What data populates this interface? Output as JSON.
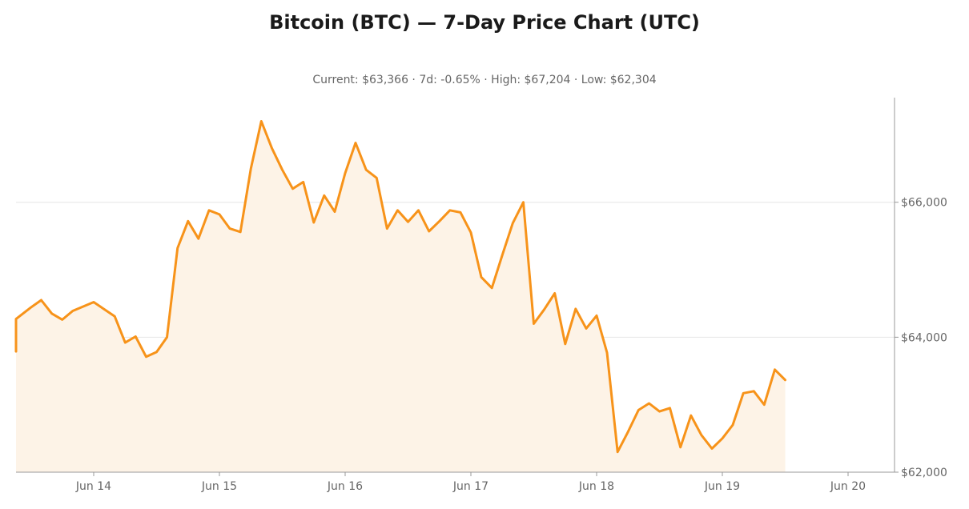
{
  "title": "Bitcoin (BTC) — 7-Day Price Chart (UTC)",
  "subtitle": "Current: $63,366  ·  7d: -0.65%  ·  High: $67,204  ·  Low: $62,304",
  "colors": {
    "line": "#f7931a",
    "fill": "#fdf3e7",
    "grid": "#e6e6e6",
    "axis": "#999999",
    "text": "#666666"
  },
  "chart_data": {
    "type": "area",
    "x_label": "",
    "y_label": "",
    "x_tick_labels": [
      "Jun 14",
      "Jun 15",
      "Jun 16",
      "Jun 17",
      "Jun 18",
      "Jun 19",
      "Jun 20"
    ],
    "y_tick_labels": [
      "$62,000",
      "$64,000",
      "$66,000"
    ],
    "y_ticks": [
      62000,
      64000,
      66000
    ],
    "ylim": [
      62000,
      67550
    ],
    "x_range_days": [
      0,
      7
    ],
    "y_axis_position": "right",
    "grid": "horizontal",
    "series": [
      {
        "x": [
          0.0,
          0.083,
          0.167,
          0.25,
          0.333,
          0.5,
          0.583,
          0.667,
          0.75,
          0.833,
          1.0,
          1.167,
          1.25,
          1.333,
          1.417,
          1.5,
          1.583,
          1.667,
          1.75,
          1.833,
          1.917,
          2.0,
          2.083,
          2.167,
          2.25,
          2.333,
          2.417,
          2.5,
          2.583,
          2.667,
          2.75,
          2.833,
          2.917,
          3.0,
          3.083,
          3.167,
          3.25,
          3.333,
          3.417,
          3.5,
          3.583,
          3.667,
          3.75,
          3.833,
          3.917,
          4.0,
          4.083,
          4.167,
          4.25,
          4.333,
          4.417,
          4.5,
          4.583,
          4.667,
          4.75,
          4.833,
          4.917,
          5.0,
          5.083,
          5.167,
          5.25,
          5.333,
          5.417,
          5.5,
          5.583,
          5.667,
          5.75,
          5.833,
          5.917,
          6.0,
          6.083,
          6.167,
          6.25,
          6.333,
          6.417,
          6.5
        ],
        "values": [
          63790,
          64130,
          64260,
          63960,
          64270,
          64440,
          64550,
          64350,
          64260,
          64390,
          64520,
          64310,
          63920,
          64010,
          63710,
          63780,
          64000,
          65320,
          65720,
          65460,
          65880,
          65820,
          65610,
          65560,
          66500,
          67200,
          66800,
          66480,
          66200,
          66300,
          65700,
          66100,
          65860,
          66430,
          66880,
          66480,
          66360,
          65610,
          65880,
          65710,
          65880,
          65570,
          65720,
          65880,
          65850,
          65550,
          64890,
          64730,
          65220,
          65690,
          66000,
          64200,
          64410,
          64650,
          63900,
          64420,
          64130,
          64320,
          63770,
          62300,
          62600,
          62920,
          63020,
          62900,
          62950,
          62370,
          62840,
          62550,
          62350,
          62500,
          62700,
          63170,
          63200,
          63000,
          63520,
          63366
        ]
      }
    ]
  }
}
